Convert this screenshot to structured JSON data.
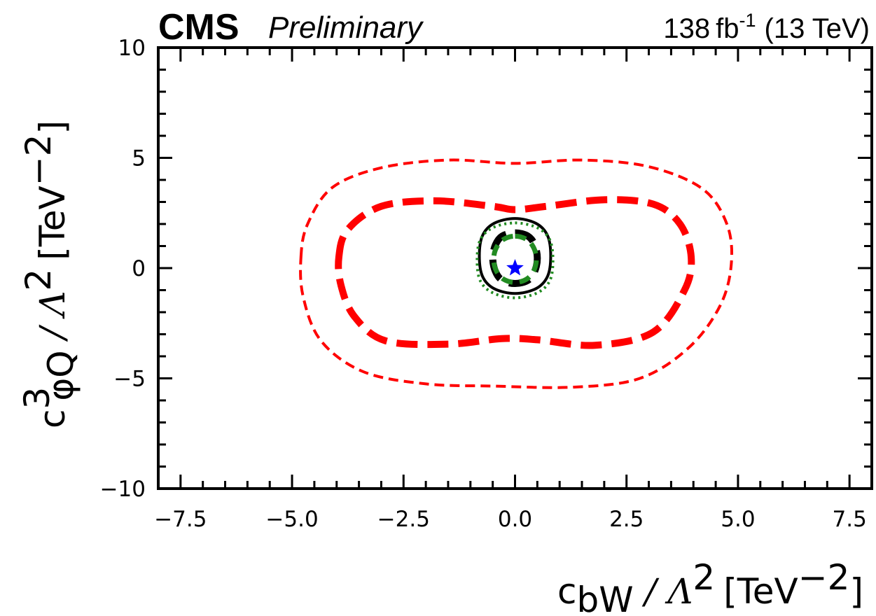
{
  "header": {
    "experiment": "CMS",
    "status": "Preliminary",
    "luminosity": "138",
    "lumi_unit": "fb",
    "lumi_exp": "-1",
    "energy": "(13 TeV)"
  },
  "colors": {
    "axis": "#000000",
    "contour_red": "#ff0000",
    "contour_black": "#000000",
    "contour_green": "#228b22",
    "best_fit": "#0000ff",
    "background": "#ffffff"
  },
  "chart_data": {
    "type": "contour",
    "xlabel": {
      "symbol": "c",
      "sub": "bW",
      "sep": " / ",
      "lambda": "Λ",
      "lambda_exp": "2",
      "unit": "[TeV",
      "unit_exp": "−2",
      "unit_close": "]"
    },
    "ylabel": {
      "symbol": "c",
      "sup": "3",
      "sub": "φQ",
      "sep": " / ",
      "lambda": "Λ",
      "lambda_exp": "2",
      "unit": "[TeV",
      "unit_exp": "−2",
      "unit_close": "]"
    },
    "xlim": [
      -8.0,
      8.0
    ],
    "ylim": [
      -10,
      10
    ],
    "xticks": [
      -7.5,
      -5.0,
      -2.5,
      0.0,
      2.5,
      5.0,
      7.5
    ],
    "xtick_labels": [
      "−7.5",
      "−5.0",
      "−2.5",
      "0.0",
      "2.5",
      "5.0",
      "7.5"
    ],
    "yticks": [
      -10,
      -5,
      0,
      5,
      10
    ],
    "ytick_labels": [
      "−10",
      "−5",
      "0",
      "5",
      "10"
    ],
    "x_minor_step": 0.5,
    "y_minor_step": 1,
    "grid": false,
    "best_fit": {
      "x": 0.0,
      "y": 0.0,
      "marker": "star"
    },
    "series": [
      {
        "name": "red outer (95% CL)",
        "color": "#ff0000",
        "style": "dashed-thin",
        "points": [
          [
            -4.8,
            0.5
          ],
          [
            -4.65,
            2.0
          ],
          [
            -4.1,
            3.65
          ],
          [
            -3.0,
            4.55
          ],
          [
            -1.5,
            4.9
          ],
          [
            0.0,
            4.75
          ],
          [
            1.5,
            4.9
          ],
          [
            3.0,
            4.6
          ],
          [
            4.2,
            3.6
          ],
          [
            4.75,
            2.0
          ],
          [
            4.85,
            0.2
          ],
          [
            4.6,
            -1.7
          ],
          [
            3.9,
            -3.6
          ],
          [
            2.8,
            -5.0
          ],
          [
            1.3,
            -5.4
          ],
          [
            -0.5,
            -5.35
          ],
          [
            -2.0,
            -5.25
          ],
          [
            -3.4,
            -4.7
          ],
          [
            -4.35,
            -3.3
          ],
          [
            -4.75,
            -1.3
          ]
        ]
      },
      {
        "name": "red inner (68% CL)",
        "color": "#ff0000",
        "style": "dashed-thick",
        "points": [
          [
            -3.95,
            0.5
          ],
          [
            -3.75,
            1.75
          ],
          [
            -3.0,
            2.8
          ],
          [
            -1.8,
            3.05
          ],
          [
            -0.5,
            2.8
          ],
          [
            0.0,
            2.65
          ],
          [
            0.7,
            2.8
          ],
          [
            2.0,
            3.1
          ],
          [
            3.1,
            2.9
          ],
          [
            3.7,
            2.0
          ],
          [
            3.95,
            0.5
          ],
          [
            3.8,
            -1.0
          ],
          [
            3.1,
            -2.9
          ],
          [
            1.8,
            -3.5
          ],
          [
            0.5,
            -3.25
          ],
          [
            -0.3,
            -3.2
          ],
          [
            -1.5,
            -3.45
          ],
          [
            -2.9,
            -3.3
          ],
          [
            -3.6,
            -2.2
          ],
          [
            -3.9,
            -0.8
          ]
        ]
      },
      {
        "name": "black outer",
        "color": "#000000",
        "style": "solid",
        "points": [
          [
            0.0,
            2.25
          ],
          [
            0.47,
            2.03
          ],
          [
            0.73,
            1.47
          ],
          [
            0.8,
            0.55
          ],
          [
            0.73,
            -0.37
          ],
          [
            0.47,
            -0.93
          ],
          [
            0.0,
            -1.15
          ],
          [
            -0.47,
            -0.93
          ],
          [
            -0.73,
            -0.37
          ],
          [
            -0.8,
            0.55
          ],
          [
            -0.73,
            1.47
          ],
          [
            -0.47,
            2.03
          ]
        ]
      },
      {
        "name": "black inner",
        "color": "#000000",
        "style": "dashed-thick",
        "points": [
          [
            0.0,
            1.6
          ],
          [
            0.29,
            1.45
          ],
          [
            0.44,
            1.05
          ],
          [
            0.5,
            0.45
          ],
          [
            0.44,
            -0.15
          ],
          [
            0.29,
            -0.55
          ],
          [
            0.0,
            -0.7
          ],
          [
            -0.29,
            -0.55
          ],
          [
            -0.44,
            -0.15
          ],
          [
            -0.5,
            0.45
          ],
          [
            -0.44,
            1.05
          ],
          [
            -0.29,
            1.45
          ]
        ]
      },
      {
        "name": "green outer",
        "color": "#228b22",
        "style": "dotted",
        "points": [
          [
            0.0,
            2.05
          ],
          [
            0.5,
            1.83
          ],
          [
            0.78,
            1.28
          ],
          [
            0.85,
            0.35
          ],
          [
            0.78,
            -0.57
          ],
          [
            0.5,
            -1.12
          ],
          [
            0.0,
            -1.35
          ],
          [
            -0.5,
            -1.12
          ],
          [
            -0.78,
            -0.57
          ],
          [
            -0.85,
            0.35
          ],
          [
            -0.78,
            1.28
          ],
          [
            -0.5,
            1.83
          ]
        ]
      },
      {
        "name": "green inner",
        "color": "#228b22",
        "style": "dashed-medium",
        "points": [
          [
            0.0,
            1.45
          ],
          [
            0.26,
            1.3
          ],
          [
            0.42,
            0.92
          ],
          [
            0.48,
            0.4
          ],
          [
            0.42,
            -0.12
          ],
          [
            0.26,
            -0.5
          ],
          [
            0.0,
            -0.65
          ],
          [
            -0.26,
            -0.5
          ],
          [
            -0.42,
            -0.12
          ],
          [
            -0.48,
            0.4
          ],
          [
            -0.42,
            0.92
          ],
          [
            -0.26,
            1.3
          ]
        ]
      }
    ]
  }
}
